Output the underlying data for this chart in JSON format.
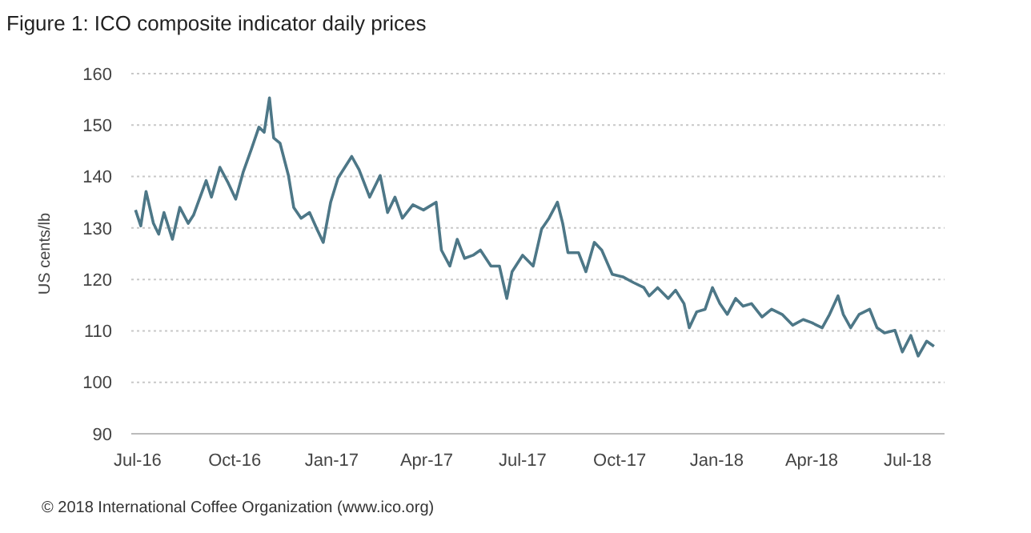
{
  "chart_data": {
    "type": "line",
    "title": "Figure 1: ICO composite indicator daily prices",
    "ylabel": "US cents/lb",
    "annotations": [
      "© 2018 International Coffee Organization (www.ico.org)"
    ],
    "x": [
      "2016-06-29",
      "2016-07-04",
      "2016-07-09",
      "2016-07-16",
      "2016-07-21",
      "2016-07-26",
      "2016-08-03",
      "2016-08-10",
      "2016-08-18",
      "2016-08-23",
      "2016-09-04",
      "2016-09-09",
      "2016-09-17",
      "2016-09-25",
      "2016-10-02",
      "2016-10-09",
      "2016-10-17",
      "2016-10-24",
      "2016-10-29",
      "2016-11-03",
      "2016-11-07",
      "2016-11-13",
      "2016-11-21",
      "2016-11-26",
      "2016-12-03",
      "2016-12-11",
      "2016-12-18",
      "2016-12-24",
      "2016-12-31",
      "2017-01-07",
      "2017-01-20",
      "2017-01-27",
      "2017-02-06",
      "2017-02-16",
      "2017-02-23",
      "2017-03-02",
      "2017-03-09",
      "2017-03-19",
      "2017-03-29",
      "2017-04-10",
      "2017-04-15",
      "2017-04-23",
      "2017-04-30",
      "2017-05-07",
      "2017-05-15",
      "2017-05-22",
      "2017-06-01",
      "2017-06-09",
      "2017-06-16",
      "2017-06-21",
      "2017-07-01",
      "2017-07-11",
      "2017-07-19",
      "2017-07-26",
      "2017-08-03",
      "2017-08-08",
      "2017-08-13",
      "2017-08-23",
      "2017-08-30",
      "2017-09-07",
      "2017-09-14",
      "2017-09-24",
      "2017-10-04",
      "2017-10-14",
      "2017-10-24",
      "2017-10-29",
      "2017-11-06",
      "2017-11-16",
      "2017-11-23",
      "2017-12-01",
      "2017-12-06",
      "2017-12-13",
      "2017-12-21",
      "2017-12-28",
      "2018-01-04",
      "2018-01-11",
      "2018-01-19",
      "2018-01-26",
      "2018-02-03",
      "2018-02-13",
      "2018-02-22",
      "2018-03-04",
      "2018-03-14",
      "2018-03-24",
      "2018-04-01",
      "2018-04-11",
      "2018-04-18",
      "2018-04-26",
      "2018-05-01",
      "2018-05-08",
      "2018-05-16",
      "2018-05-26",
      "2018-06-02",
      "2018-06-09",
      "2018-06-19",
      "2018-06-26",
      "2018-07-04",
      "2018-07-11",
      "2018-07-19",
      "2018-07-26"
    ],
    "series": [
      {
        "color": "#4d7787",
        "values": [
          133.5,
          130.4,
          137.1,
          130.9,
          128.8,
          133,
          127.8,
          134,
          130.9,
          132.5,
          139.2,
          136,
          141.8,
          138.7,
          135.6,
          140.8,
          145.4,
          149.6,
          148.6,
          155.3,
          147.5,
          146.5,
          140.2,
          134,
          131.9,
          133,
          129.8,
          127.2,
          135,
          139.7,
          143.9,
          141.3,
          136,
          140.2,
          133,
          136,
          131.9,
          134.5,
          133.5,
          135,
          125.7,
          122.6,
          127.8,
          124.1,
          124.7,
          125.7,
          122.6,
          122.6,
          116.3,
          121.5,
          124.7,
          122.6,
          129.8,
          131.9,
          135,
          130.9,
          125.2,
          125.2,
          121.5,
          127.2,
          125.7,
          121,
          120.5,
          119.4,
          118.4,
          116.8,
          118.4,
          116.3,
          117.9,
          115.3,
          110.6,
          113.7,
          114.2,
          118.4,
          115.3,
          113.2,
          116.3,
          114.8,
          115.3,
          112.7,
          114.2,
          113.2,
          111.1,
          112.2,
          111.6,
          110.6,
          113.2,
          116.8,
          113.2,
          110.6,
          113.2,
          114.2,
          110.6,
          109.6,
          110.1,
          105.9,
          109.1,
          105.1,
          108,
          107
        ]
      }
    ],
    "xlim": [
      "2016-06-25",
      "2018-08-05"
    ],
    "xticks": [
      {
        "value": "2016-07-01",
        "label": "Jul-16"
      },
      {
        "value": "2016-10-01",
        "label": "Oct-16"
      },
      {
        "value": "2017-01-01",
        "label": "Jan-17"
      },
      {
        "value": "2017-04-01",
        "label": "Apr-17"
      },
      {
        "value": "2017-07-01",
        "label": "Jul-17"
      },
      {
        "value": "2017-10-01",
        "label": "Oct-17"
      },
      {
        "value": "2018-01-01",
        "label": "Jan-18"
      },
      {
        "value": "2018-04-01",
        "label": "Apr-18"
      },
      {
        "value": "2018-07-01",
        "label": "Jul-18"
      }
    ],
    "ylim": [
      90,
      160
    ],
    "yticks": [
      90,
      100,
      110,
      120,
      130,
      140,
      150,
      160
    ],
    "grid": "y",
    "marker": "none",
    "line_style": "solid"
  }
}
